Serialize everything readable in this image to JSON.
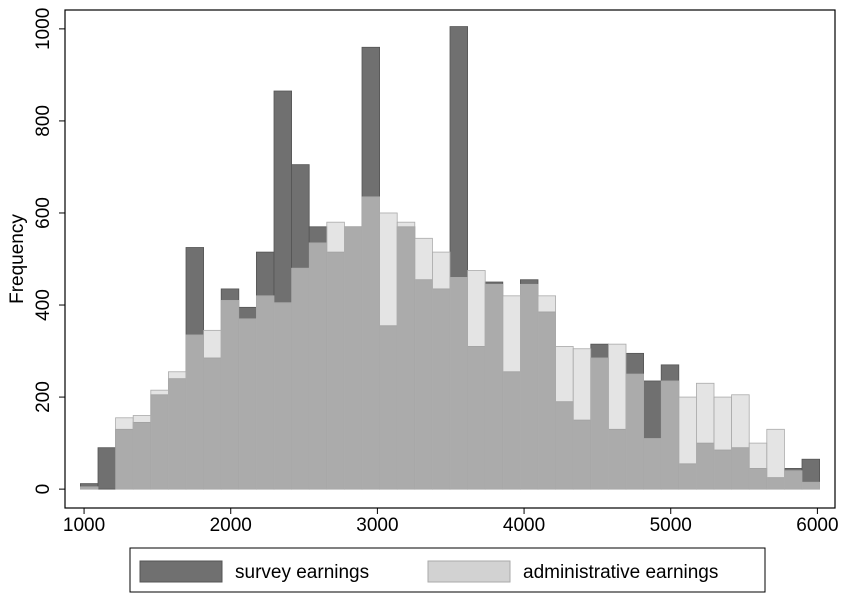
{
  "chart_data": {
    "type": "histogram",
    "y_label": "Frequency",
    "bins": [
      975,
      1095,
      1215,
      1335,
      1455,
      1575,
      1695,
      1815,
      1935,
      2055,
      2175,
      2295,
      2415,
      2535,
      2655,
      2775,
      2895,
      3015,
      3135,
      3255,
      3375,
      3495,
      3615,
      3735,
      3855,
      3975,
      4095,
      4215,
      4335,
      4455,
      4575,
      4695,
      4815,
      4935,
      5055,
      5175,
      5295,
      5415,
      5535,
      5655,
      5775,
      5895,
      6015
    ],
    "series": [
      {
        "name": "survey earnings",
        "color": "#707070",
        "values": [
          12,
          90,
          130,
          145,
          205,
          240,
          525,
          285,
          435,
          395,
          515,
          865,
          705,
          570,
          515,
          570,
          960,
          355,
          570,
          455,
          435,
          1005,
          310,
          450,
          255,
          455,
          385,
          190,
          150,
          315,
          130,
          295,
          235,
          270,
          55,
          100,
          85,
          90,
          45,
          25,
          45,
          65
        ]
      },
      {
        "name": "administrative earnings",
        "color": "#d2d2d2",
        "values": [
          5,
          0,
          155,
          160,
          215,
          255,
          335,
          345,
          410,
          370,
          420,
          405,
          480,
          535,
          580,
          570,
          635,
          600,
          580,
          545,
          515,
          460,
          475,
          445,
          420,
          445,
          420,
          310,
          305,
          285,
          315,
          250,
          110,
          235,
          200,
          230,
          200,
          205,
          100,
          130,
          40,
          15
        ]
      }
    ],
    "xlim": [
      870,
      6120
    ],
    "xticks": [
      1000,
      2000,
      3000,
      4000,
      5000,
      6000
    ],
    "ylim": [
      -41,
      1041
    ],
    "yticks": [
      0,
      200,
      400,
      600,
      800,
      1000
    ]
  }
}
